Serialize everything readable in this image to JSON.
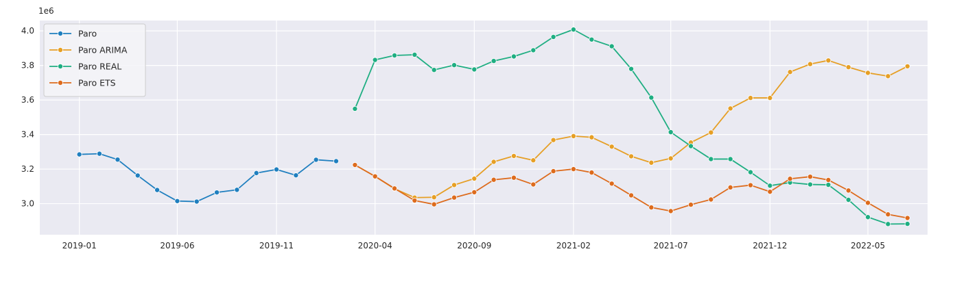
{
  "chart_data": {
    "type": "line",
    "title": "",
    "xlabel": "",
    "ylabel": "",
    "y_offset_label": "1e6",
    "y_scale": 1000000,
    "ylim": [
      2.82,
      4.06
    ],
    "yticks": [
      3.0,
      3.2,
      3.4,
      3.6,
      3.8,
      4.0
    ],
    "ytick_labels": [
      "3.0",
      "3.2",
      "3.4",
      "3.6",
      "3.8",
      "4.0"
    ],
    "xlim": [
      "2018-11-01",
      "2022-08-01"
    ],
    "xticks": [
      "2019-01-01",
      "2019-06-01",
      "2019-11-01",
      "2020-04-01",
      "2020-09-01",
      "2021-02-01",
      "2021-07-01",
      "2021-12-01",
      "2022-05-01"
    ],
    "xtick_labels": [
      "2019-01",
      "2019-06",
      "2019-11",
      "2020-04",
      "2020-09",
      "2021-02",
      "2021-07",
      "2021-12",
      "2022-05"
    ],
    "grid": true,
    "legend_position": "top-left",
    "background": "#eaeaf2",
    "series": [
      {
        "name": "Paro",
        "color": "#1f7fbf",
        "x": [
          "2019-01-01",
          "2019-02-01",
          "2019-03-01",
          "2019-04-01",
          "2019-05-01",
          "2019-06-01",
          "2019-07-01",
          "2019-08-01",
          "2019-09-01",
          "2019-10-01",
          "2019-11-01",
          "2019-12-01",
          "2020-01-01",
          "2020-02-01"
        ],
        "y": [
          3285000,
          3289000,
          3255000,
          3163000,
          3079000,
          3015000,
          3012000,
          3065000,
          3080000,
          3177000,
          3198000,
          3164000,
          3254000,
          3246000
        ]
      },
      {
        "name": "Paro ARIMA",
        "color": "#e69f25",
        "x": [
          "2020-03-01",
          "2020-04-01",
          "2020-05-01",
          "2020-06-01",
          "2020-07-01",
          "2020-08-01",
          "2020-09-01",
          "2020-10-01",
          "2020-11-01",
          "2020-12-01",
          "2021-01-01",
          "2021-02-01",
          "2021-03-01",
          "2021-04-01",
          "2021-05-01",
          "2021-06-01",
          "2021-07-01",
          "2021-08-01",
          "2021-09-01",
          "2021-10-01",
          "2021-11-01",
          "2021-12-01",
          "2022-01-01",
          "2022-02-01",
          "2022-03-01",
          "2022-04-01",
          "2022-05-01",
          "2022-06-01",
          "2022-07-01"
        ],
        "y": [
          3224000,
          3158000,
          3086000,
          3035000,
          3037000,
          3108000,
          3145000,
          3242000,
          3276000,
          3251000,
          3368000,
          3391000,
          3384000,
          3330000,
          3274000,
          3237000,
          3262000,
          3354000,
          3412000,
          3551000,
          3612000,
          3612000,
          3762000,
          3808000,
          3829000,
          3790000,
          3757000,
          3738000,
          3795000
        ]
      },
      {
        "name": "Paro REAL",
        "color": "#1fae82",
        "x": [
          "2020-03-01",
          "2020-04-01",
          "2020-05-01",
          "2020-06-01",
          "2020-07-01",
          "2020-08-01",
          "2020-09-01",
          "2020-10-01",
          "2020-11-01",
          "2020-12-01",
          "2021-01-01",
          "2021-02-01",
          "2021-03-01",
          "2021-04-01",
          "2021-05-01",
          "2021-06-01",
          "2021-07-01",
          "2021-08-01",
          "2021-09-01",
          "2021-10-01",
          "2021-11-01",
          "2021-12-01",
          "2022-01-01",
          "2022-02-01",
          "2022-03-01",
          "2022-04-01",
          "2022-05-01",
          "2022-06-01",
          "2022-07-01"
        ],
        "y": [
          3549000,
          3832000,
          3858000,
          3862000,
          3774000,
          3802000,
          3777000,
          3826000,
          3852000,
          3888000,
          3965000,
          4008000,
          3950000,
          3911000,
          3780000,
          3614000,
          3414000,
          3333000,
          3258000,
          3258000,
          3182000,
          3104000,
          3122000,
          3111000,
          3109000,
          3022000,
          2922000,
          2882000,
          2883000
        ]
      },
      {
        "name": "Paro ETS",
        "color": "#dd6b1d",
        "x": [
          "2020-03-01",
          "2020-04-01",
          "2020-05-01",
          "2020-06-01",
          "2020-07-01",
          "2020-08-01",
          "2020-09-01",
          "2020-10-01",
          "2020-11-01",
          "2020-12-01",
          "2021-01-01",
          "2021-02-01",
          "2021-03-01",
          "2021-04-01",
          "2021-05-01",
          "2021-06-01",
          "2021-07-01",
          "2021-08-01",
          "2021-09-01",
          "2021-10-01",
          "2021-11-01",
          "2021-12-01",
          "2022-01-01",
          "2022-02-01",
          "2022-03-01",
          "2022-04-01",
          "2022-05-01",
          "2022-06-01",
          "2022-07-01"
        ],
        "y": [
          3224000,
          3158000,
          3088000,
          3018000,
          2996000,
          3035000,
          3066000,
          3138000,
          3150000,
          3111000,
          3188000,
          3200000,
          3180000,
          3116000,
          3048000,
          2978000,
          2957000,
          2994000,
          3024000,
          3094000,
          3107000,
          3069000,
          3144000,
          3156000,
          3137000,
          3076000,
          3005000,
          2938000,
          2917000
        ]
      }
    ]
  }
}
